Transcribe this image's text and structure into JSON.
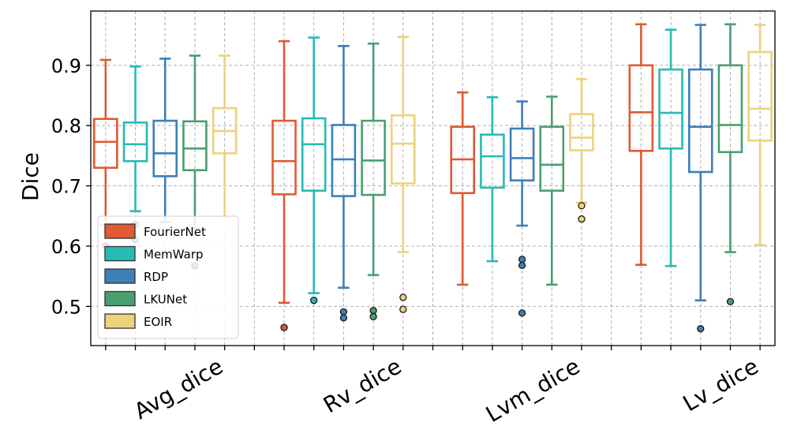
{
  "chart_data": {
    "type": "boxplot",
    "title": "",
    "xlabel": "",
    "ylabel": "Dice",
    "ylim": [
      0.435,
      0.99
    ],
    "yticks": [
      0.5,
      0.6,
      0.7,
      0.8,
      0.9
    ],
    "ytick_labels": [
      "0.5",
      "0.6",
      "0.7",
      "0.8",
      "0.9"
    ],
    "grid": true,
    "legend_position": "lower-left",
    "categories": [
      "Avg_dice",
      "Rv_dice",
      "Lvm_dice",
      "Lv_dice"
    ],
    "series": [
      {
        "name": "FourierNet",
        "color": "#e05a33",
        "boxes": [
          {
            "whisker_low": 0.635,
            "q1": 0.73,
            "median": 0.773,
            "q3": 0.811,
            "whisker_high": 0.909,
            "outliers": [
              0.6
            ]
          },
          {
            "whisker_low": 0.506,
            "q1": 0.686,
            "median": 0.741,
            "q3": 0.808,
            "whisker_high": 0.94,
            "outliers": [
              0.465
            ]
          },
          {
            "whisker_low": 0.536,
            "q1": 0.688,
            "median": 0.744,
            "q3": 0.798,
            "whisker_high": 0.855,
            "outliers": []
          },
          {
            "whisker_low": 0.569,
            "q1": 0.758,
            "median": 0.822,
            "q3": 0.9,
            "whisker_high": 0.968,
            "outliers": []
          }
        ]
      },
      {
        "name": "MemWarp",
        "color": "#28bab5",
        "boxes": [
          {
            "whisker_low": 0.658,
            "q1": 0.741,
            "median": 0.769,
            "q3": 0.805,
            "whisker_high": 0.898,
            "outliers": [
              0.636,
              0.611
            ]
          },
          {
            "whisker_low": 0.522,
            "q1": 0.692,
            "median": 0.769,
            "q3": 0.812,
            "whisker_high": 0.946,
            "outliers": [
              0.51
            ]
          },
          {
            "whisker_low": 0.575,
            "q1": 0.697,
            "median": 0.749,
            "q3": 0.785,
            "whisker_high": 0.847,
            "outliers": []
          },
          {
            "whisker_low": 0.567,
            "q1": 0.762,
            "median": 0.821,
            "q3": 0.893,
            "whisker_high": 0.959,
            "outliers": []
          }
        ]
      },
      {
        "name": "RDP",
        "color": "#3e7fb8",
        "boxes": [
          {
            "whisker_low": 0.64,
            "q1": 0.716,
            "median": 0.754,
            "q3": 0.808,
            "whisker_high": 0.911,
            "outliers": []
          },
          {
            "whisker_low": 0.531,
            "q1": 0.683,
            "median": 0.744,
            "q3": 0.801,
            "whisker_high": 0.932,
            "outliers": [
              0.491,
              0.481
            ]
          },
          {
            "whisker_low": 0.634,
            "q1": 0.709,
            "median": 0.746,
            "q3": 0.795,
            "whisker_high": 0.84,
            "outliers": [
              0.578,
              0.568,
              0.489
            ]
          },
          {
            "whisker_low": 0.51,
            "q1": 0.723,
            "median": 0.798,
            "q3": 0.893,
            "whisker_high": 0.967,
            "outliers": [
              0.463
            ]
          }
        ]
      },
      {
        "name": "LKUNet",
        "color": "#4a9e70",
        "boxes": [
          {
            "whisker_low": 0.63,
            "q1": 0.726,
            "median": 0.762,
            "q3": 0.807,
            "whisker_high": 0.916,
            "outliers": [
              0.567
            ]
          },
          {
            "whisker_low": 0.552,
            "q1": 0.685,
            "median": 0.742,
            "q3": 0.808,
            "whisker_high": 0.936,
            "outliers": [
              0.493,
              0.483
            ]
          },
          {
            "whisker_low": 0.536,
            "q1": 0.692,
            "median": 0.735,
            "q3": 0.798,
            "whisker_high": 0.848,
            "outliers": []
          },
          {
            "whisker_low": 0.59,
            "q1": 0.756,
            "median": 0.801,
            "q3": 0.9,
            "whisker_high": 0.968,
            "outliers": [
              0.508
            ]
          }
        ]
      },
      {
        "name": "EOIR",
        "color": "#edd27a",
        "boxes": [
          {
            "whisker_low": 0.648,
            "q1": 0.754,
            "median": 0.791,
            "q3": 0.829,
            "whisker_high": 0.916,
            "outliers": []
          },
          {
            "whisker_low": 0.59,
            "q1": 0.704,
            "median": 0.77,
            "q3": 0.817,
            "whisker_high": 0.947,
            "outliers": [
              0.515,
              0.495
            ]
          },
          {
            "whisker_low": 0.672,
            "q1": 0.759,
            "median": 0.78,
            "q3": 0.819,
            "whisker_high": 0.877,
            "outliers": [
              0.667,
              0.645
            ]
          },
          {
            "whisker_low": 0.602,
            "q1": 0.775,
            "median": 0.828,
            "q3": 0.922,
            "whisker_high": 0.967,
            "outliers": []
          }
        ]
      }
    ]
  }
}
